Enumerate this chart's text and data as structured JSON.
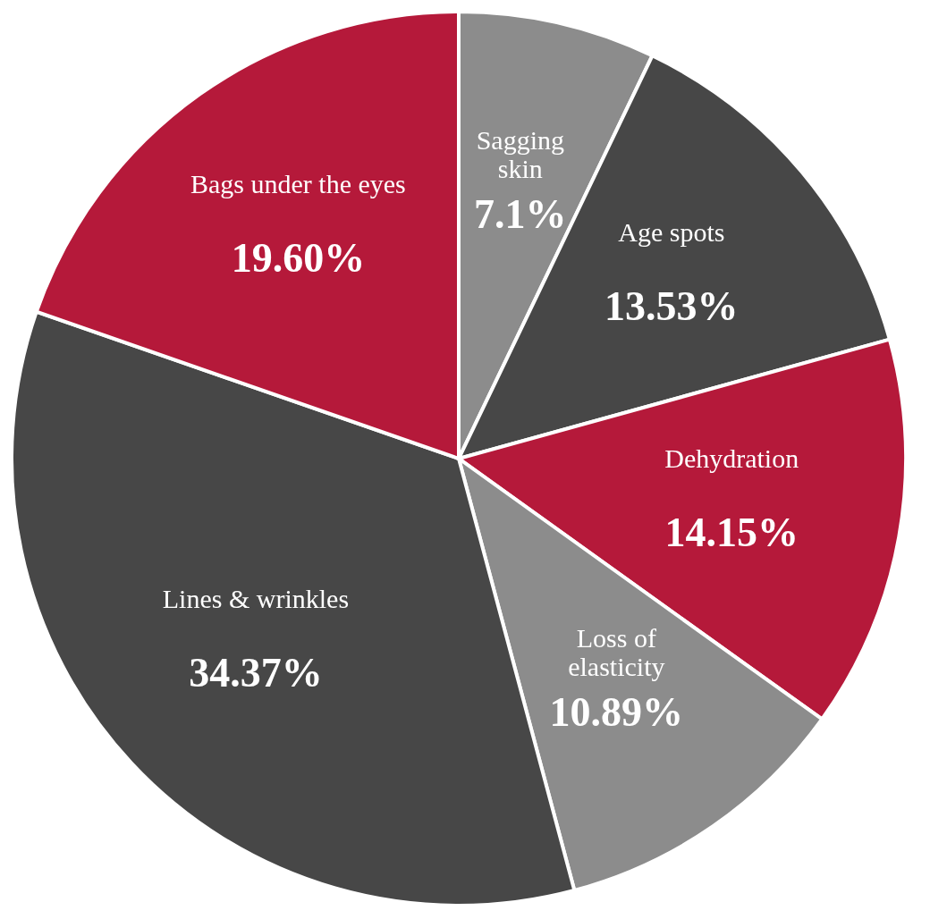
{
  "chart_data": {
    "type": "pie",
    "categories": [
      "Sagging skin",
      "Age spots",
      "Dehydration",
      "Loss of elasticity",
      "Lines & wrinkles",
      "Bags under the eyes"
    ],
    "values": [
      7.1,
      13.53,
      14.15,
      10.89,
      34.37,
      19.6
    ],
    "value_labels": [
      "7.1%",
      "13.53%",
      "14.15%",
      "10.89%",
      "34.37%",
      "19.60%"
    ],
    "colors": [
      "#8c8c8c",
      "#474747",
      "#b5193a",
      "#8c8c8c",
      "#474747",
      "#b5193a"
    ],
    "legend": false
  }
}
